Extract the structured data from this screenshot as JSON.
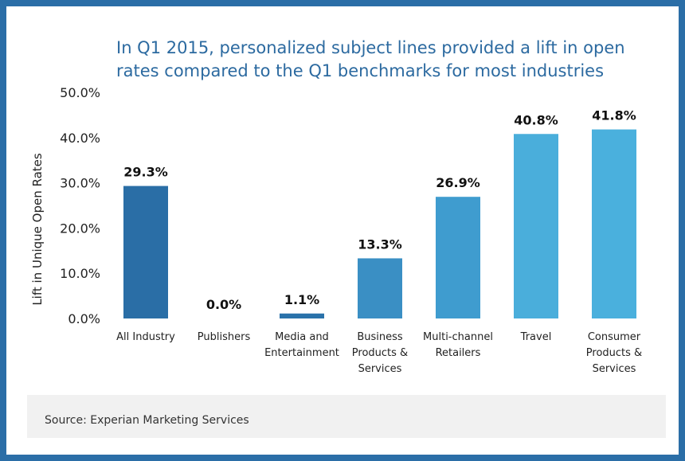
{
  "chart_data": {
    "type": "bar",
    "title": "In Q1 2015, personalized subject lines provided a lift in open rates compared to the Q1 benchmarks for most industries",
    "xlabel": "",
    "ylabel": "Lift in Unique Open Rates",
    "ylim": [
      0,
      50
    ],
    "yticks": [
      "0.0%",
      "10.0%",
      "20.0%",
      "30.0%",
      "40.0%",
      "50.0%"
    ],
    "categories": [
      [
        "All Industry"
      ],
      [
        "Publishers"
      ],
      [
        "Media and",
        "Entertainment"
      ],
      [
        "Business",
        "Products &",
        "Services"
      ],
      [
        "Multi-channel",
        "Retailers"
      ],
      [
        "Travel"
      ],
      [
        "Consumer",
        "Products &",
        "Services"
      ]
    ],
    "values": [
      29.3,
      0.0,
      1.1,
      13.3,
      26.9,
      40.8,
      41.8
    ],
    "data_labels": [
      "29.3%",
      "0.0%",
      "1.1%",
      "13.3%",
      "26.9%",
      "40.8%",
      "41.8%"
    ],
    "colors": [
      "#2a6ea6",
      "#2a6ea6",
      "#2a72aa",
      "#3a8fc4",
      "#3f9ccf",
      "#4aaedb",
      "#4ab0dd"
    ],
    "grid": false,
    "legend": "none"
  },
  "source": "Source: Experian Marketing Services"
}
